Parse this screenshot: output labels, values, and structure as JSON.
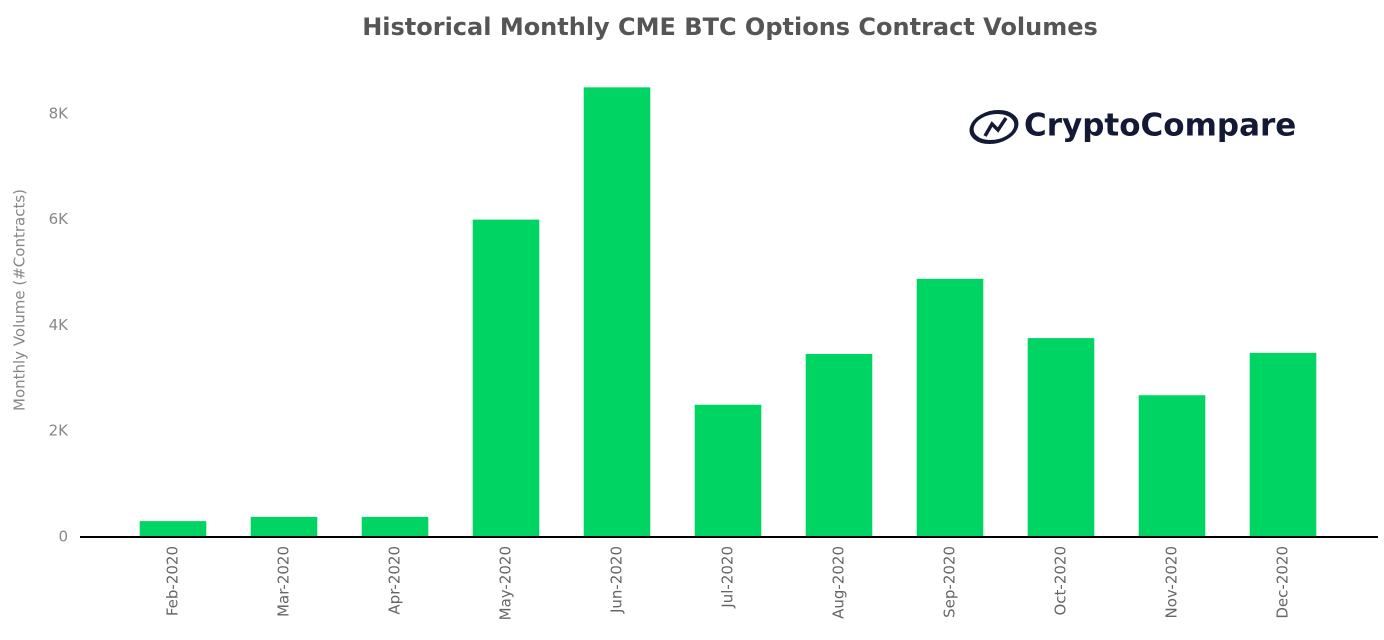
{
  "chart_data": {
    "type": "bar",
    "title": "Historical Monthly CME BTC Options Contract Volumes",
    "logo": "CryptoCompare",
    "y_axis_label": "Monthly Volume (#Contracts)",
    "categories": [
      "Feb-2020",
      "Mar-2020",
      "Apr-2020",
      "May-2020",
      "Jun-2020",
      "Jul-2020",
      "Aug-2020",
      "Sep-2020",
      "Oct-2020",
      "Nov-2020",
      "Dec-2020"
    ],
    "values": [
      300,
      380,
      380,
      6000,
      8500,
      2500,
      3460,
      4880,
      3760,
      2680,
      3480
    ],
    "color": "#00d563",
    "ylim": [
      0,
      8600
    ],
    "yticks": [
      0,
      {
        "value": 2000,
        "label": "2K"
      },
      {
        "value": 4000,
        "label": "4K"
      },
      {
        "value": 6000,
        "label": "6K"
      },
      {
        "value": 8000,
        "label": "8K"
      }
    ],
    "grid": false
  }
}
